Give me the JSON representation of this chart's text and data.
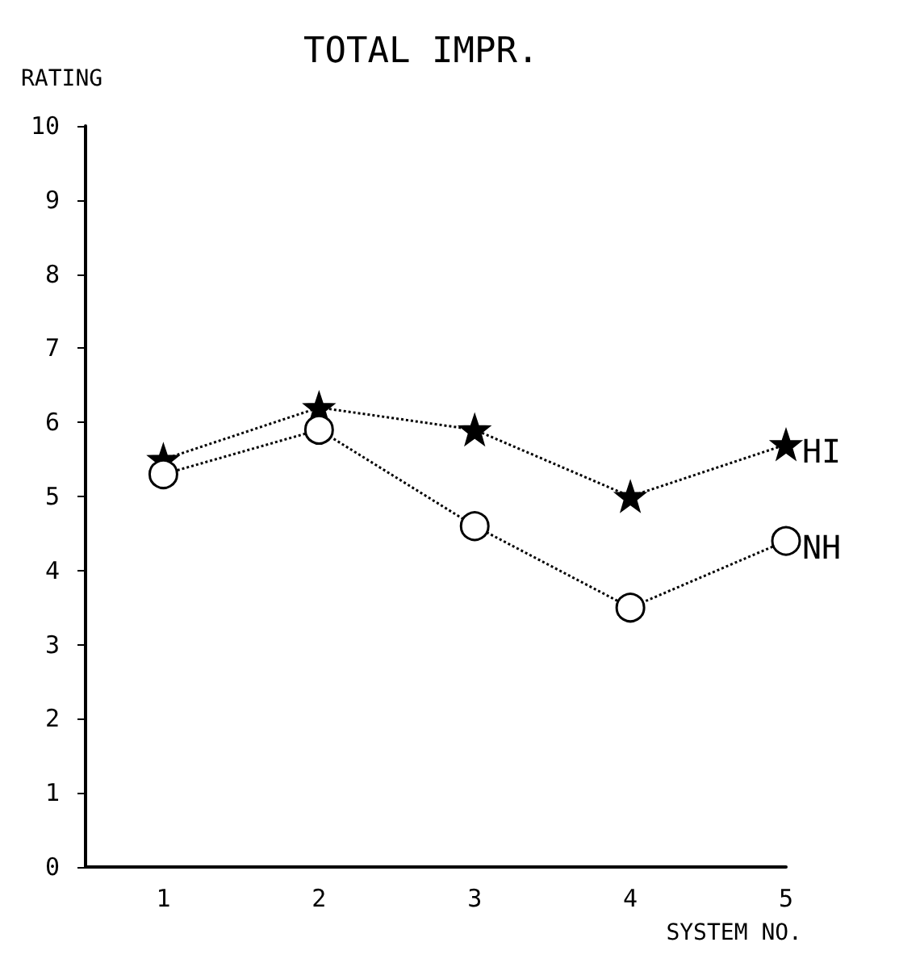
{
  "chart_data": {
    "type": "line",
    "title": "TOTAL IMPR.",
    "xlabel": "SYSTEM NO.",
    "ylabel": "RATING",
    "x": [
      1,
      2,
      3,
      4,
      5
    ],
    "series": [
      {
        "name": "HI",
        "color": "#000000",
        "marker": "star",
        "values": [
          5.5,
          6.2,
          5.9,
          5.0,
          5.7
        ]
      },
      {
        "name": "NH",
        "color": "#000000",
        "marker": "circle",
        "values": [
          5.3,
          5.9,
          4.6,
          3.5,
          4.4
        ]
      }
    ],
    "xlim": [
      0.5,
      5
    ],
    "xticks": [
      1,
      2,
      3,
      4,
      5
    ],
    "ylim": [
      0,
      10
    ],
    "yticks": [
      0,
      1,
      2,
      3,
      4,
      5,
      6,
      7,
      8,
      9,
      10
    ],
    "line_style": "dotted",
    "grid": false,
    "legend": false
  }
}
